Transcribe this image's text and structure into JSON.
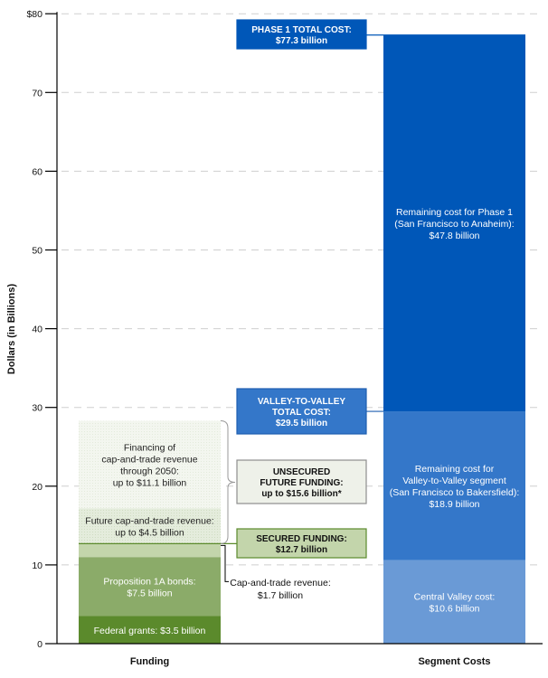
{
  "chart_data": {
    "type": "bar",
    "stacked": true,
    "ylabel": "Dollars (in Billions)",
    "ylim": [
      0,
      80
    ],
    "yticks": [
      0,
      10,
      20,
      30,
      40,
      50,
      60,
      70,
      80
    ],
    "ytick_labels": [
      "0",
      "10",
      "20",
      "30",
      "40",
      "50",
      "60",
      "70",
      "$80"
    ],
    "grid": true,
    "categories": [
      "Funding",
      "Segment Costs"
    ],
    "bars": [
      {
        "category": "Funding",
        "segments": [
          {
            "name": "Federal grants",
            "value": 3.5,
            "label": [
              "Federal grants: $3.5 billion"
            ],
            "color": "#5b8a2c",
            "text_color": "#ffffff"
          },
          {
            "name": "Proposition 1A bonds",
            "value": 7.5,
            "label": [
              "Proposition 1A bonds:",
              "$7.5 billion"
            ],
            "color": "#8bab69",
            "text_color": "#ffffff"
          },
          {
            "name": "Cap-and-trade revenue",
            "value": 1.7,
            "label": [],
            "color": "#c3d5ab",
            "text_color": "#222222"
          },
          {
            "name": "Future cap-and-trade revenue",
            "value": 4.5,
            "label": [
              "Future cap-and-trade revenue:",
              "up to $4.5 billion"
            ],
            "color": "#e4ecdc",
            "text_color": "#222222"
          },
          {
            "name": "Financing of cap-and-trade revenue through 2050",
            "value": 11.1,
            "label": [
              "Financing of",
              "cap-and-trade revenue",
              "through 2050:",
              "up to $11.1 billion"
            ],
            "color": "#f2f5ee",
            "text_color": "#222222"
          }
        ]
      },
      {
        "category": "Segment Costs",
        "segments": [
          {
            "name": "Central Valley cost",
            "value": 10.6,
            "label": [
              "Central Valley cost:",
              "$10.6 billion"
            ],
            "color": "#6a9ad6",
            "text_color": "#ffffff"
          },
          {
            "name": "Remaining cost for Valley-to-Valley segment",
            "value": 18.9,
            "label": [
              "Remaining cost for",
              "Valley-to-Valley segment",
              "(San Francisco to Bakersfield):",
              "$18.9 billion"
            ],
            "color": "#3477c9",
            "text_color": "#ffffff"
          },
          {
            "name": "Remaining cost for Phase 1",
            "value": 47.8,
            "label": [
              "Remaining cost for Phase 1",
              "(San Francisco to Anaheim):",
              "$47.8 billion"
            ],
            "color": "#0057b8",
            "text_color": "#ffffff"
          }
        ]
      }
    ],
    "annotations": [
      {
        "name": "phase1-total",
        "value": 77.3,
        "lines": [
          "PHASE 1 TOTAL COST:",
          "$77.3 billion"
        ],
        "fill": "#0057b8",
        "stroke": "#0057b8",
        "text_color": "#ffffff"
      },
      {
        "name": "valley-to-valley-total",
        "value": 29.5,
        "lines": [
          "VALLEY-TO-VALLEY",
          "TOTAL COST:",
          "$29.5 billion"
        ],
        "fill": "#3477c9",
        "stroke": "#1f5fb0",
        "text_color": "#ffffff"
      },
      {
        "name": "unsecured-future-funding",
        "value": 15.6,
        "lines": [
          "UNSECURED",
          "FUTURE FUNDING:",
          "up to $15.6 billion*"
        ],
        "fill": "#eef1e9",
        "stroke": "#8e8e8e",
        "text_color": "#111111"
      },
      {
        "name": "secured-funding",
        "value": 12.7,
        "lines": [
          "SECURED FUNDING:",
          "$12.7 billion"
        ],
        "fill": "#c3d5ab",
        "stroke": "#5b8a2c",
        "text_color": "#111111"
      },
      {
        "name": "cap-and-trade-callout",
        "value": 1.7,
        "lines": [
          "Cap-and-trade revenue:",
          "$1.7 billion"
        ],
        "fill": "none",
        "stroke": "none",
        "text_color": "#111111"
      }
    ]
  }
}
